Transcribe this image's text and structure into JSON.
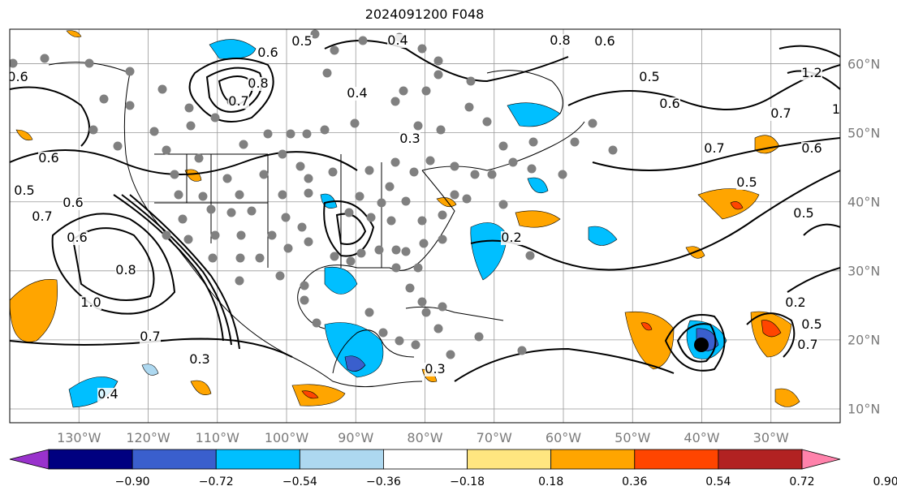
{
  "title": "2024091200 F048",
  "map": {
    "projection": "equirectangular",
    "lon_range": [
      -140,
      -20
    ],
    "lat_range": [
      8,
      65
    ],
    "lon_labels": [
      "130°W",
      "120°W",
      "110°W",
      "100°W",
      "90°W",
      "80°W",
      "70°W",
      "60°W",
      "50°W",
      "40°W",
      "30°W"
    ],
    "lat_labels": [
      "10°N",
      "20°N",
      "30°N",
      "40°N",
      "50°N",
      "60°N"
    ],
    "grid": true,
    "contour_labels": [
      "0.6",
      "0.5",
      "0.4",
      "0.6",
      "0.8",
      "0.7",
      "0.8",
      "0.4",
      "0.6",
      "0.5",
      "0.6",
      "1.2",
      "0.7",
      "0.6",
      "1",
      "0.7",
      "0.5",
      "0.5",
      "0.3",
      "0.5",
      "0.6",
      "0.7",
      "0.6",
      "0.8",
      "1.0",
      "0.7",
      "0.3",
      "0.3",
      "0.2",
      "0.4",
      "0.2",
      "0.5",
      "0.7",
      "0.6"
    ],
    "hurricane_marker": "black-dot",
    "station_marker": "gray-dot"
  },
  "colorbar": {
    "ticks": [
      "−0.90",
      "−0.72",
      "−0.54",
      "−0.36",
      "−0.18",
      "0.18",
      "0.36",
      "0.54",
      "0.72",
      "0.90"
    ],
    "colors": [
      "#9932cc",
      "#000080",
      "#3a5fcd",
      "#00bfff",
      "#add8f0",
      "#ffffff",
      "#ffe680",
      "#ffa500",
      "#ff4500",
      "#b22222",
      "#ff82ab"
    ]
  }
}
